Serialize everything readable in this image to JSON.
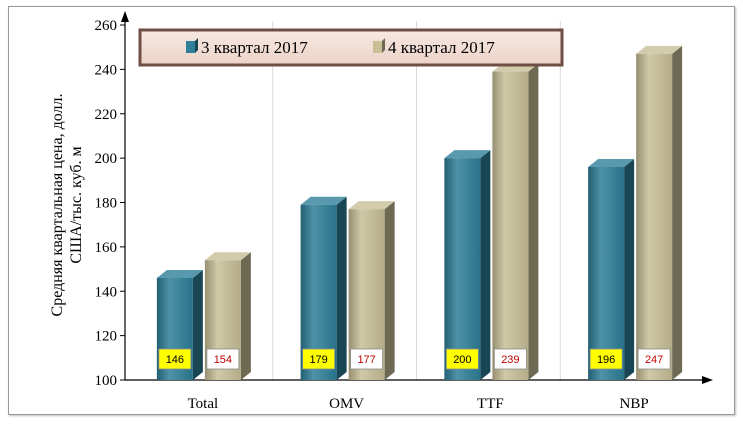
{
  "chart_data": {
    "type": "bar",
    "categories": [
      "Total",
      "OMV",
      "TTF",
      "NBP"
    ],
    "series": [
      {
        "name": "3 квартал 2017",
        "values": [
          146,
          179,
          200,
          196
        ],
        "color": "#2e7f98",
        "label_bg": "#ffff00",
        "label_color": "#000000"
      },
      {
        "name": "4 квартал 2017",
        "values": [
          154,
          177,
          239,
          247
        ],
        "color": "#c8bf97",
        "label_bg": "#ffffff",
        "label_color": "#c00000"
      }
    ],
    "ylabel": "Средняя квартальная цена, долл. США/тыс. куб. м",
    "ylim": [
      100,
      260
    ],
    "yticks": [
      100,
      120,
      140,
      160,
      180,
      200,
      220,
      240,
      260
    ],
    "grid": "vertical-category-separators",
    "legend_position": "top"
  }
}
